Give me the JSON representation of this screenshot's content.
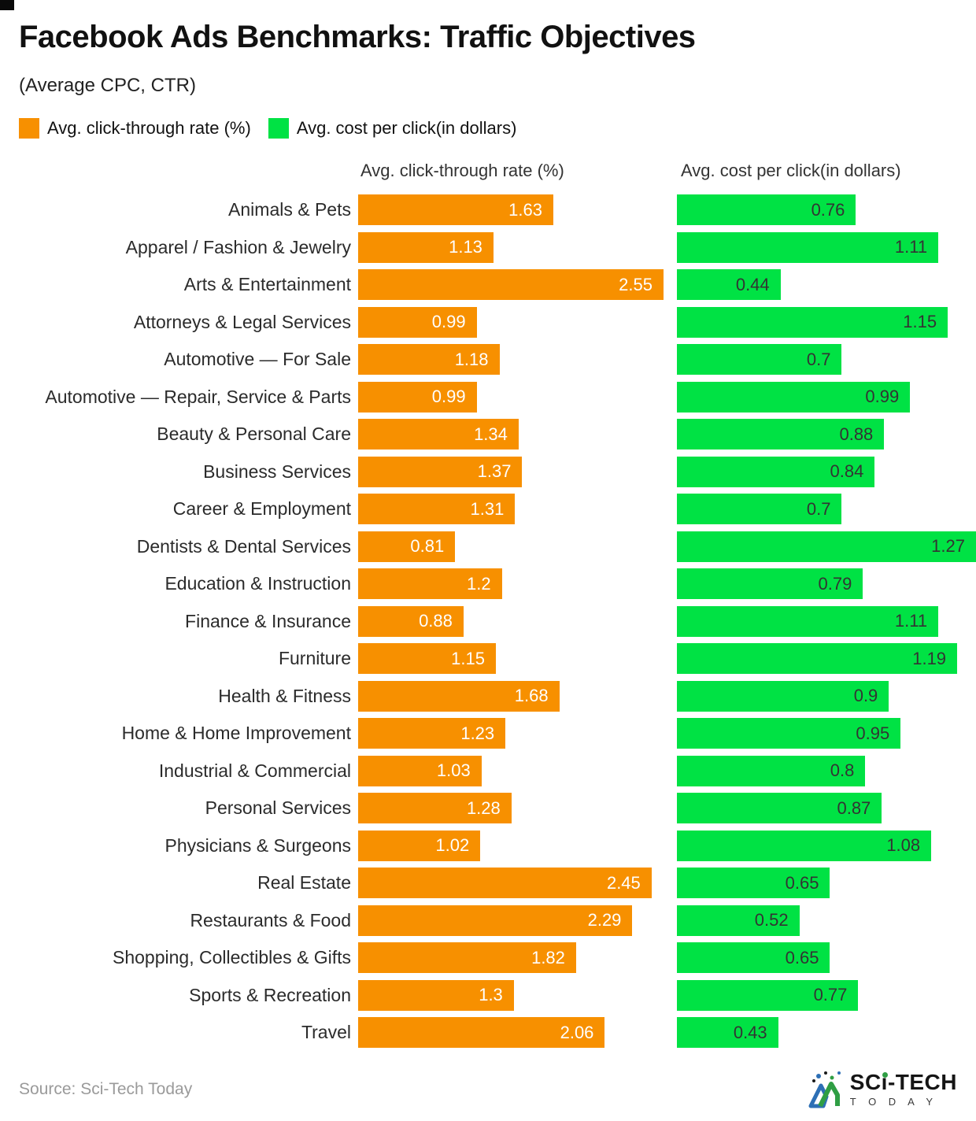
{
  "header": {
    "title": "Facebook Ads Benchmarks: Traffic Objectives",
    "subtitle": "(Average CPC, CTR)"
  },
  "legend": {
    "items": [
      {
        "label": "Avg. click-through rate (%)",
        "color": "#f79000"
      },
      {
        "label": "Avg. cost per click(in dollars)",
        "color": "#00e244"
      }
    ]
  },
  "columns": {
    "ctr_header": "Avg. click-through rate (%)",
    "cpc_header": "Avg. cost per click(in dollars)"
  },
  "chart_data": {
    "type": "bar",
    "orientation": "horizontal",
    "title": "Facebook Ads Benchmarks: Traffic Objectives",
    "subtitle": "(Average CPC, CTR)",
    "legend_position": "top",
    "grid": false,
    "categories": [
      "Animals & Pets",
      "Apparel / Fashion & Jewelry",
      "Arts & Entertainment",
      "Attorneys & Legal Services",
      "Automotive — For Sale",
      "Automotive — Repair, Service & Parts",
      "Beauty & Personal Care",
      "Business Services",
      "Career & Employment",
      "Dentists & Dental Services",
      "Education & Instruction",
      "Finance & Insurance",
      "Furniture",
      "Health & Fitness",
      "Home & Home Improvement",
      "Industrial & Commercial",
      "Personal Services",
      "Physicians & Surgeons",
      "Real Estate",
      "Restaurants & Food",
      "Shopping, Collectibles & Gifts",
      "Sports & Recreation",
      "Travel"
    ],
    "series": [
      {
        "name": "Avg. click-through rate (%)",
        "color": "#f79000",
        "label_color": "#ffffff",
        "axis_max": 2.55,
        "values": [
          1.63,
          1.13,
          2.55,
          0.99,
          1.18,
          0.99,
          1.34,
          1.37,
          1.31,
          0.81,
          1.2,
          0.88,
          1.15,
          1.68,
          1.23,
          1.03,
          1.28,
          1.02,
          2.45,
          2.29,
          1.82,
          1.3,
          2.06
        ],
        "labels": [
          "1.63",
          "1.13",
          "2.55",
          "0.99",
          "1.18",
          "0.99",
          "1.34",
          "1.37",
          "1.31",
          "0.81",
          "1.2",
          "0.88",
          "1.15",
          "1.68",
          "1.23",
          "1.03",
          "1.28",
          "1.02",
          "2.45",
          "2.29",
          "1.82",
          "1.3",
          "2.06"
        ]
      },
      {
        "name": "Avg. cost per click(in dollars)",
        "color": "#00e244",
        "label_color": "#333333",
        "axis_max": 1.27,
        "values": [
          0.76,
          1.11,
          0.44,
          1.15,
          0.7,
          0.99,
          0.88,
          0.84,
          0.7,
          1.27,
          0.79,
          1.11,
          1.19,
          0.9,
          0.95,
          0.8,
          0.87,
          1.08,
          0.65,
          0.52,
          0.65,
          0.77,
          0.43
        ],
        "labels": [
          "0.76",
          "1.11",
          "0.44",
          "1.15",
          "0.7",
          "0.99",
          "0.88",
          "0.84",
          "0.7",
          "1.27",
          "0.79",
          "1.11",
          "1.19",
          "0.9",
          "0.95",
          "0.8",
          "0.87",
          "1.08",
          "0.65",
          "0.52",
          "0.65",
          "0.77",
          "0.43"
        ]
      }
    ]
  },
  "footer": {
    "source": "Source: Sci-Tech Today",
    "logo": {
      "part1": "SC",
      "part2": "i",
      "part3": "-TECH",
      "bottom": "T O D A Y"
    }
  }
}
